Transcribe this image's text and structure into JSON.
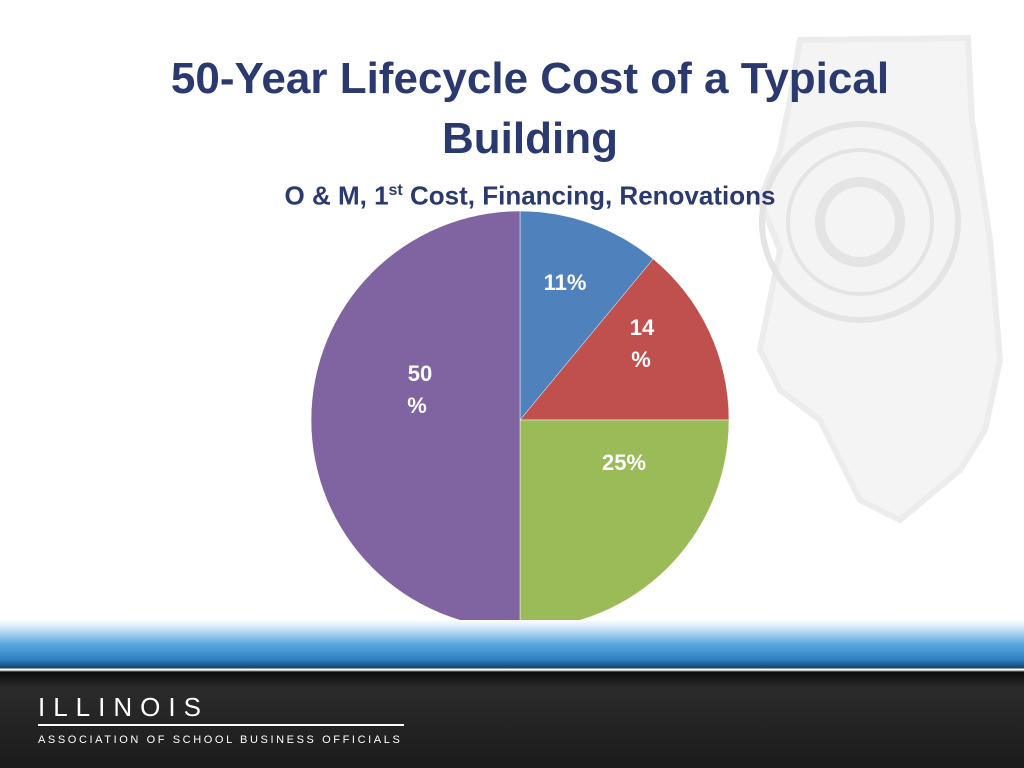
{
  "title": {
    "line1": "50-Year Lifecycle Cost of a Typical",
    "line2": "Building"
  },
  "subtitle": {
    "pre": "O & M, 1",
    "sup": "st",
    "post": " Cost, Financing, Renovations"
  },
  "chart_data": {
    "type": "pie",
    "title": "50-Year Lifecycle Cost of a Typical Building",
    "subtitle": "O & M, 1st Cost, Financing, Renovations",
    "slices": [
      {
        "value": 11,
        "label": "11%",
        "color": "#4f81bd",
        "label_color": "#ffffff"
      },
      {
        "value": 14,
        "label": "14%",
        "color": "#c0504d",
        "label_color": "#ffffff"
      },
      {
        "value": 25,
        "label": "25%",
        "color": "#9bbb59",
        "label_color": "#ffffff"
      },
      {
        "value": 50,
        "label": "50%",
        "color": "#8064a2",
        "label_color": "#ffffff"
      }
    ],
    "start_angle": "12 o'clock",
    "direction": "clockwise",
    "legend": "none"
  },
  "footer": {
    "logo_word": "ILLINOIS",
    "logo_sub": "ASSOCIATION OF SCHOOL BUSINESS OFFICIALS"
  },
  "colors": {
    "title": "#2b3a6e",
    "band_blue": "#2f7fc1",
    "band_dark": "#1b1b1b"
  }
}
